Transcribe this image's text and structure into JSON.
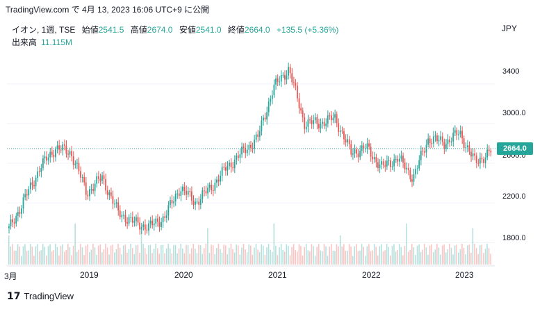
{
  "caption": "TradingView.com で 4月 13, 2023 16:06 UTC+9 に公開",
  "legend": {
    "symbol": "イオン, 1週, TSE",
    "open_label": "始値",
    "open": "2541.5",
    "high_label": "高値",
    "high": "2674.0",
    "low_label": "安値",
    "low": "2541.0",
    "close_label": "終値",
    "close": "2664.0",
    "change": "+135.5 (+5.36%)",
    "volume_label": "出来高",
    "volume": "11.115M"
  },
  "currency": "JPY",
  "price_axis": [
    "3400",
    "3000.0",
    "2600.0",
    "2200.0",
    "1800.0"
  ],
  "last_price_tag": "2664.0",
  "time_axis": [
    "3月",
    "2019",
    "2020",
    "2021",
    "2022",
    "2023"
  ],
  "footer": {
    "logo_icon": "tradingview-logo-icon",
    "brand": "TradingView"
  },
  "colors": {
    "up": "#26a69a",
    "down": "#ef5350",
    "grid": "#f0f3fa"
  },
  "chart_data": {
    "type": "candlestick",
    "timeframe": "1週",
    "ylim": [
      1600,
      3700
    ],
    "x": [
      "2018-03",
      "2018-05",
      "2018-07",
      "2018-09",
      "2018-11",
      "2019-01",
      "2019-03",
      "2019-05",
      "2019-07",
      "2019-09",
      "2019-11",
      "2020-01",
      "2020-03",
      "2020-05",
      "2020-07",
      "2020-09",
      "2020-11",
      "2021-01",
      "2021-03",
      "2021-05",
      "2021-07",
      "2021-09",
      "2021-11",
      "2022-01",
      "2022-03",
      "2022-05",
      "2022-07",
      "2022-09",
      "2022-11",
      "2023-01",
      "2023-03",
      "2023-04"
    ],
    "close": [
      1880,
      2180,
      2500,
      2700,
      2650,
      2250,
      2400,
      2050,
      1950,
      1900,
      2000,
      2300,
      2150,
      2300,
      2500,
      2650,
      2800,
      3300,
      3500,
      2950,
      2950,
      3000,
      2650,
      2700,
      2500,
      2600,
      2400,
      2800,
      2750,
      2850,
      2550,
      2664
    ],
    "volume_note": "出来高 weekly bars"
  }
}
